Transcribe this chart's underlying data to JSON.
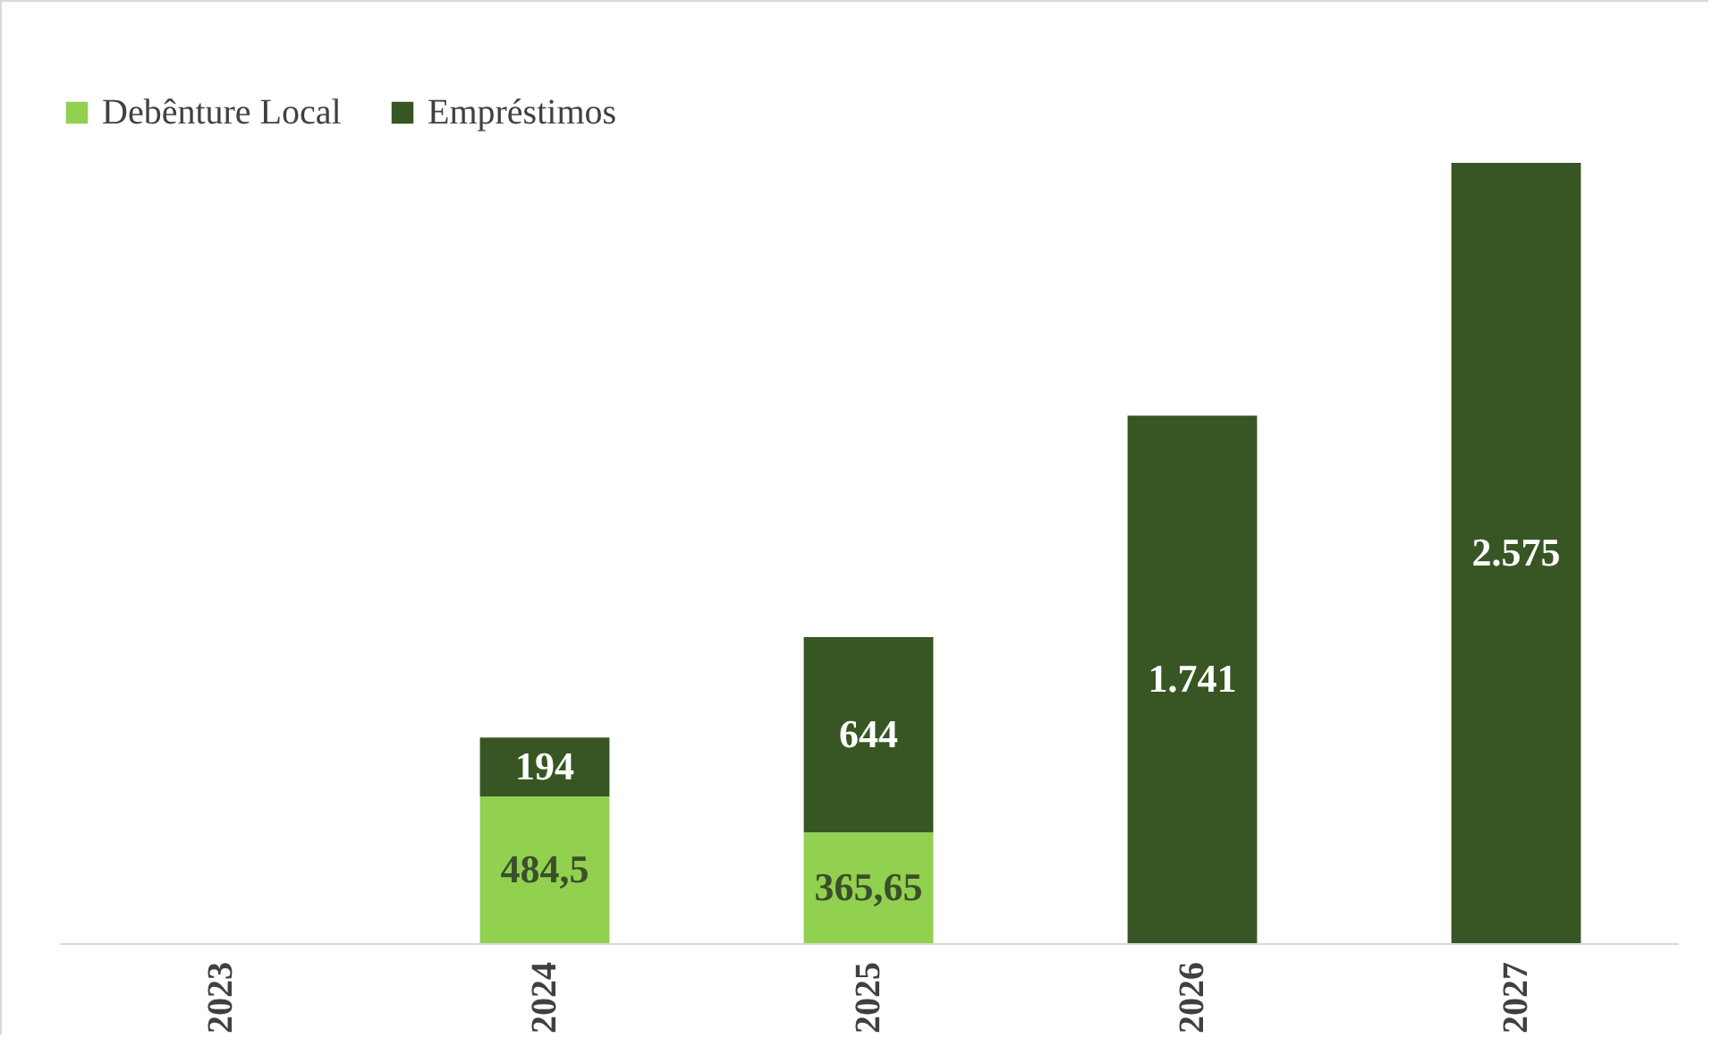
{
  "chart_data": {
    "type": "bar",
    "stacked": true,
    "categories": [
      "2023",
      "2024",
      "2025",
      "2026",
      "2027"
    ],
    "series": [
      {
        "name": "Debênture Local",
        "color": "#92d050",
        "values": [
          null,
          484.5,
          365.65,
          null,
          null
        ],
        "value_labels": [
          null,
          "484,5",
          "365,65",
          null,
          null
        ]
      },
      {
        "name": "Empréstimos",
        "color": "#375623",
        "values": [
          null,
          194,
          644,
          1741,
          2575
        ],
        "value_labels": [
          null,
          "194",
          "644",
          "1.741",
          "2.575"
        ]
      }
    ],
    "legend": "top",
    "grid": false
  }
}
